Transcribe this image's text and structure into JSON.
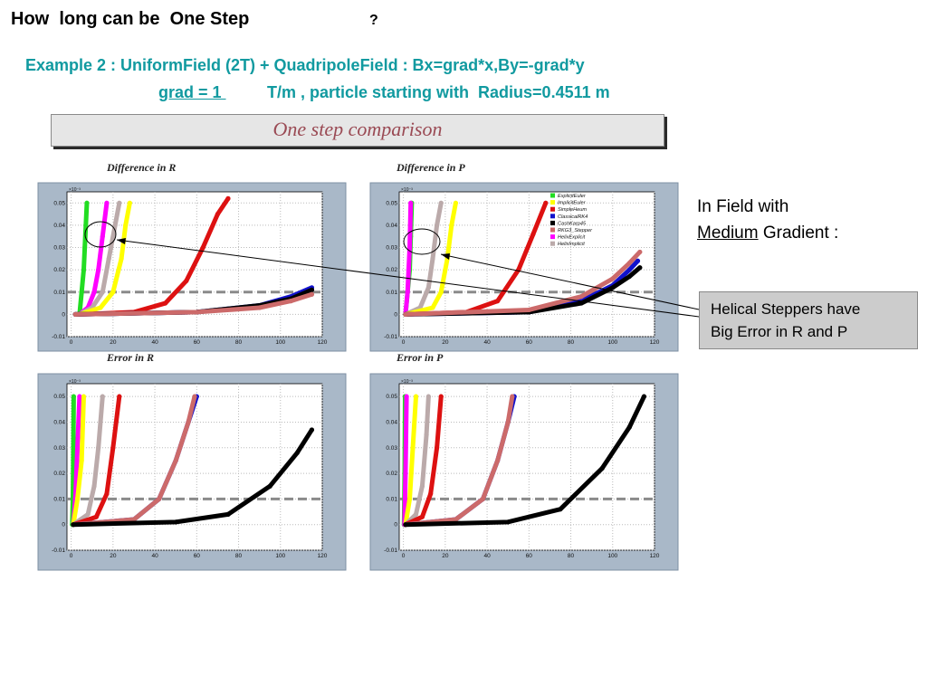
{
  "title": "How  long can be  One Step",
  "title_mark": "?",
  "subtitle": {
    "line1": "Example 2 : UniformField (2T) + QuadripoleField : Bx=grad*x,By=-grad*y",
    "grad": "grad = 1 ",
    "rest": " T/m , particle starting with  Radius=0.4511 m"
  },
  "banner": "One step comparison",
  "right_text": {
    "line1": "In Field with",
    "medium": "Medium",
    "gradient": " Gradient :"
  },
  "callout": {
    "line1": "Helical Steppers have",
    "line2": "Big Error in R and P"
  },
  "colors": {
    "ExplicitEuler": "#22dd22",
    "ImplicitEuler": "#ffff00",
    "SimpleHeum": "#dd1111",
    "ClassicalRK4": "#1111cc",
    "CashKarp45": "#000000",
    "RKG3_Stepper": "#cc6a6a",
    "HelixExplicit": "#ff00ff",
    "HelixImplicit": "#bbaaaa",
    "panel": "#a9b8c8"
  },
  "chart_data": [
    {
      "type": "scatter",
      "title": "Difference in R",
      "exponent": "×10⁻³",
      "xlim": [
        -2,
        120
      ],
      "ylim": [
        -0.01,
        0.055
      ],
      "xticks": [
        "0",
        "20",
        "40",
        "60",
        "80",
        "100",
        "120"
      ],
      "yticks": [
        "-0.01",
        "0",
        "0.01",
        "0.02",
        "0.03",
        "0.04",
        "0.05"
      ],
      "reference_line": 0.01,
      "series": [
        {
          "name": "ExplicitEuler",
          "points": [
            [
              4,
              0
            ],
            [
              5,
              0.01
            ],
            [
              6,
              0.02
            ],
            [
              6.5,
              0.03
            ],
            [
              7,
              0.04
            ],
            [
              7.5,
              0.05
            ]
          ]
        },
        {
          "name": "HelixExplicit",
          "points": [
            [
              4,
              0
            ],
            [
              8,
              0.003
            ],
            [
              11,
              0.01
            ],
            [
              13,
              0.02
            ],
            [
              15,
              0.035
            ],
            [
              17,
              0.05
            ]
          ]
        },
        {
          "name": "HelixImplicit",
          "points": [
            [
              4,
              0
            ],
            [
              10,
              0.003
            ],
            [
              15,
              0.01
            ],
            [
              18,
              0.025
            ],
            [
              21,
              0.04
            ],
            [
              23,
              0.05
            ]
          ]
        },
        {
          "name": "ImplicitEuler",
          "points": [
            [
              4,
              0
            ],
            [
              14,
              0.003
            ],
            [
              20,
              0.01
            ],
            [
              24,
              0.025
            ],
            [
              26,
              0.04
            ],
            [
              28,
              0.05
            ]
          ]
        },
        {
          "name": "SimpleHeum",
          "points": [
            [
              4,
              0
            ],
            [
              30,
              0.001
            ],
            [
              45,
              0.005
            ],
            [
              55,
              0.015
            ],
            [
              63,
              0.03
            ],
            [
              70,
              0.045
            ],
            [
              75,
              0.052
            ]
          ]
        },
        {
          "name": "ClassicalRK4",
          "points": [
            [
              2,
              0
            ],
            [
              60,
              0.001
            ],
            [
              90,
              0.004
            ],
            [
              105,
              0.008
            ],
            [
              115,
              0.012
            ]
          ]
        },
        {
          "name": "CashKarp45",
          "points": [
            [
              2,
              0
            ],
            [
              60,
              0.001
            ],
            [
              90,
              0.004
            ],
            [
              105,
              0.007
            ],
            [
              115,
              0.011
            ]
          ]
        },
        {
          "name": "RKG3_Stepper",
          "points": [
            [
              2,
              0
            ],
            [
              60,
              0.001
            ],
            [
              90,
              0.003
            ],
            [
              105,
              0.006
            ],
            [
              115,
              0.009
            ]
          ]
        }
      ]
    },
    {
      "type": "scatter",
      "title": "Difference in P",
      "exponent": "×10⁻³",
      "xlim": [
        -2,
        120
      ],
      "ylim": [
        -0.01,
        0.055
      ],
      "xticks": [
        "0",
        "20",
        "40",
        "60",
        "80",
        "100",
        "120"
      ],
      "yticks": [
        "-0.01",
        "0",
        "0.01",
        "0.02",
        "0.03",
        "0.04",
        "0.05"
      ],
      "reference_line": 0.01,
      "legend": [
        "ExplicitEuler",
        "ImplicitEuler",
        "SimpleHeum",
        "ClassicalRK4",
        "CashKarp45",
        "RKG3_Stepper",
        "HelixExplicit",
        "HelixImplicit"
      ],
      "series": [
        {
          "name": "ExplicitEuler",
          "points": [
            [
              1,
              0
            ],
            [
              2,
              0.01
            ],
            [
              3,
              0.02
            ],
            [
              3.5,
              0.035
            ],
            [
              4,
              0.05
            ]
          ]
        },
        {
          "name": "HelixExplicit",
          "points": [
            [
              1,
              0
            ],
            [
              2,
              0.01
            ],
            [
              2.5,
              0.02
            ],
            [
              3,
              0.03
            ],
            [
              3.5,
              0.05
            ]
          ]
        },
        {
          "name": "HelixImplicit",
          "points": [
            [
              1,
              0
            ],
            [
              8,
              0.003
            ],
            [
              12,
              0.012
            ],
            [
              14,
              0.025
            ],
            [
              16,
              0.04
            ],
            [
              18,
              0.05
            ]
          ]
        },
        {
          "name": "ImplicitEuler",
          "points": [
            [
              1,
              0
            ],
            [
              14,
              0.003
            ],
            [
              18,
              0.01
            ],
            [
              21,
              0.025
            ],
            [
              23,
              0.04
            ],
            [
              25,
              0.05
            ]
          ]
        },
        {
          "name": "SimpleHeum",
          "points": [
            [
              1,
              0
            ],
            [
              30,
              0.001
            ],
            [
              45,
              0.006
            ],
            [
              55,
              0.02
            ],
            [
              62,
              0.036
            ],
            [
              68,
              0.05
            ]
          ]
        },
        {
          "name": "ClassicalRK4",
          "points": [
            [
              1,
              0
            ],
            [
              60,
              0.001
            ],
            [
              85,
              0.006
            ],
            [
              100,
              0.013
            ],
            [
              108,
              0.02
            ],
            [
              112,
              0.024
            ]
          ]
        },
        {
          "name": "CashKarp45",
          "points": [
            [
              1,
              0
            ],
            [
              60,
              0.001
            ],
            [
              85,
              0.005
            ],
            [
              100,
              0.012
            ],
            [
              108,
              0.017
            ],
            [
              113,
              0.021
            ]
          ]
        },
        {
          "name": "RKG3_Stepper",
          "points": [
            [
              1,
              0
            ],
            [
              60,
              0.002
            ],
            [
              85,
              0.008
            ],
            [
              100,
              0.016
            ],
            [
              108,
              0.023
            ],
            [
              113,
              0.028
            ]
          ]
        }
      ]
    },
    {
      "type": "scatter",
      "title": "Error in R",
      "exponent": "×10⁻³",
      "xlim": [
        -2,
        120
      ],
      "ylim": [
        -0.01,
        0.055
      ],
      "xticks": [
        "0",
        "20",
        "40",
        "60",
        "80",
        "100",
        "120"
      ],
      "yticks": [
        "-0.01",
        "0",
        "0.01",
        "0.02",
        "0.03",
        "0.04",
        "0.05"
      ],
      "reference_line": 0.01,
      "series": [
        {
          "name": "ExplicitEuler",
          "points": [
            [
              0.5,
              0
            ],
            [
              0.8,
              0.01
            ],
            [
              1,
              0.025
            ],
            [
              1.2,
              0.05
            ]
          ]
        },
        {
          "name": "HelixExplicit",
          "points": [
            [
              1,
              0
            ],
            [
              2,
              0.01
            ],
            [
              3,
              0.03
            ],
            [
              4,
              0.05
            ]
          ]
        },
        {
          "name": "ImplicitEuler",
          "points": [
            [
              1,
              0
            ],
            [
              3,
              0.01
            ],
            [
              5,
              0.025
            ],
            [
              6,
              0.05
            ]
          ]
        },
        {
          "name": "HelixImplicit",
          "points": [
            [
              1,
              0
            ],
            [
              8,
              0.004
            ],
            [
              11,
              0.015
            ],
            [
              13,
              0.03
            ],
            [
              15,
              0.05
            ]
          ]
        },
        {
          "name": "SimpleHeum",
          "points": [
            [
              1,
              0
            ],
            [
              12,
              0.003
            ],
            [
              17,
              0.012
            ],
            [
              20,
              0.03
            ],
            [
              23,
              0.05
            ]
          ]
        },
        {
          "name": "ClassicalRK4",
          "points": [
            [
              1,
              0
            ],
            [
              30,
              0.002
            ],
            [
              42,
              0.01
            ],
            [
              50,
              0.025
            ],
            [
              56,
              0.04
            ],
            [
              60,
              0.05
            ]
          ]
        },
        {
          "name": "RKG3_Stepper",
          "points": [
            [
              1,
              0
            ],
            [
              30,
              0.002
            ],
            [
              42,
              0.01
            ],
            [
              50,
              0.025
            ],
            [
              56,
              0.04
            ],
            [
              59,
              0.05
            ]
          ]
        },
        {
          "name": "CashKarp45",
          "points": [
            [
              1,
              0
            ],
            [
              50,
              0.001
            ],
            [
              75,
              0.004
            ],
            [
              95,
              0.015
            ],
            [
              108,
              0.028
            ],
            [
              115,
              0.037
            ]
          ]
        }
      ]
    },
    {
      "type": "scatter",
      "title": "Error in P",
      "exponent": "×10⁻³",
      "xlim": [
        -2,
        120
      ],
      "ylim": [
        -0.01,
        0.055
      ],
      "xticks": [
        "0",
        "20",
        "40",
        "60",
        "80",
        "100",
        "120"
      ],
      "yticks": [
        "-0.01",
        "0",
        "0.01",
        "0.02",
        "0.03",
        "0.04",
        "0.05"
      ],
      "reference_line": 0.01,
      "series": [
        {
          "name": "ExplicitEuler",
          "points": [
            [
              0.3,
              0
            ],
            [
              0.6,
              0.02
            ],
            [
              0.8,
              0.05
            ]
          ]
        },
        {
          "name": "HelixExplicit",
          "points": [
            [
              0.5,
              0
            ],
            [
              1,
              0.02
            ],
            [
              1.5,
              0.05
            ]
          ]
        },
        {
          "name": "ImplicitEuler",
          "points": [
            [
              1,
              0
            ],
            [
              3,
              0.01
            ],
            [
              4.5,
              0.03
            ],
            [
              6,
              0.05
            ]
          ]
        },
        {
          "name": "HelixImplicit",
          "points": [
            [
              1,
              0
            ],
            [
              6,
              0.004
            ],
            [
              9,
              0.015
            ],
            [
              11,
              0.035
            ],
            [
              12,
              0.05
            ]
          ]
        },
        {
          "name": "SimpleHeum",
          "points": [
            [
              1,
              0
            ],
            [
              9,
              0.003
            ],
            [
              13,
              0.012
            ],
            [
              16,
              0.03
            ],
            [
              18,
              0.05
            ]
          ]
        },
        {
          "name": "ClassicalRK4",
          "points": [
            [
              1,
              0
            ],
            [
              25,
              0.002
            ],
            [
              38,
              0.01
            ],
            [
              45,
              0.025
            ],
            [
              50,
              0.04
            ],
            [
              53,
              0.05
            ]
          ]
        },
        {
          "name": "RKG3_Stepper",
          "points": [
            [
              1,
              0
            ],
            [
              25,
              0.002
            ],
            [
              38,
              0.01
            ],
            [
              45,
              0.025
            ],
            [
              50,
              0.04
            ],
            [
              52,
              0.05
            ]
          ]
        },
        {
          "name": "CashKarp45",
          "points": [
            [
              1,
              0
            ],
            [
              50,
              0.001
            ],
            [
              75,
              0.006
            ],
            [
              95,
              0.022
            ],
            [
              108,
              0.038
            ],
            [
              115,
              0.05
            ]
          ]
        }
      ]
    }
  ]
}
